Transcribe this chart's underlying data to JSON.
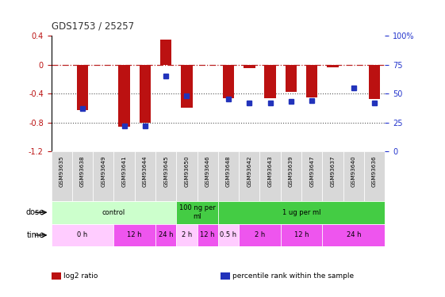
{
  "title": "GDS1753 / 25257",
  "samples": [
    "GSM93635",
    "GSM93638",
    "GSM93649",
    "GSM93641",
    "GSM93644",
    "GSM93645",
    "GSM93650",
    "GSM93646",
    "GSM93648",
    "GSM93642",
    "GSM93643",
    "GSM93639",
    "GSM93647",
    "GSM93637",
    "GSM93640",
    "GSM93636"
  ],
  "log2_ratio": [
    0.0,
    -0.63,
    0.0,
    -0.86,
    -0.8,
    0.34,
    -0.6,
    0.0,
    -0.47,
    -0.05,
    -0.46,
    -0.38,
    -0.45,
    -0.04,
    0.0,
    -0.48
  ],
  "percentile_rank": [
    0,
    37,
    0,
    22,
    22,
    65,
    48,
    0,
    45,
    42,
    42,
    43,
    44,
    0,
    55,
    42
  ],
  "ylim_left": [
    -1.2,
    0.4
  ],
  "ylim_right": [
    0,
    100
  ],
  "dose_groups": [
    {
      "label": "control",
      "start": 0,
      "end": 6,
      "color": "#ccffcc"
    },
    {
      "label": "100 ng per\nml",
      "start": 6,
      "end": 8,
      "color": "#44cc44"
    },
    {
      "label": "1 ug per ml",
      "start": 8,
      "end": 16,
      "color": "#44cc44"
    }
  ],
  "time_groups": [
    {
      "label": "0 h",
      "start": 0,
      "end": 3,
      "color": "#ffccff"
    },
    {
      "label": "12 h",
      "start": 3,
      "end": 5,
      "color": "#ee55ee"
    },
    {
      "label": "24 h",
      "start": 5,
      "end": 6,
      "color": "#ee55ee"
    },
    {
      "label": "2 h",
      "start": 6,
      "end": 7,
      "color": "#ffccff"
    },
    {
      "label": "12 h",
      "start": 7,
      "end": 8,
      "color": "#ee55ee"
    },
    {
      "label": "0.5 h",
      "start": 8,
      "end": 9,
      "color": "#ffccff"
    },
    {
      "label": "2 h",
      "start": 9,
      "end": 11,
      "color": "#ee55ee"
    },
    {
      "label": "12 h",
      "start": 11,
      "end": 13,
      "color": "#ee55ee"
    },
    {
      "label": "24 h",
      "start": 13,
      "end": 16,
      "color": "#ee55ee"
    }
  ],
  "bar_color": "#bb1111",
  "dot_color": "#2233bb",
  "hline_color": "#bb2222",
  "dotted_color": "#555555",
  "bg_color": "#ffffff",
  "legend_items": [
    {
      "label": "log2 ratio",
      "color": "#bb1111"
    },
    {
      "label": "percentile rank within the sample",
      "color": "#2233bb"
    }
  ]
}
